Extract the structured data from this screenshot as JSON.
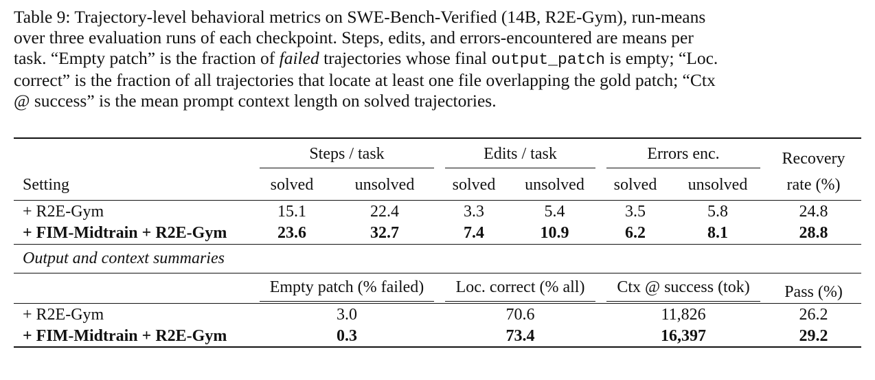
{
  "caption": [
    "Table 9: Trajectory-level behavioral metrics on SWE-Bench-Verified (14B, R2E-Gym), run-means",
    "over three evaluation runs of each checkpoint. Steps, edits, and errors-encountered are means per",
    "task. “Empty patch” is the fraction of ",
    "failed",
    " trajectories whose final ",
    "output_patch",
    " is empty; “Loc.",
    "correct” is the fraction of all trajectories that locate at least one file overlapping the gold patch; “Ctx",
    "@ success” is the mean prompt context length on solved trajectories."
  ],
  "table": {
    "groups": [
      "Steps / task",
      "Edits / task",
      "Errors enc.",
      "Recovery"
    ],
    "subheaders": [
      "Setting",
      "solved",
      "unsolved",
      "solved",
      "unsolved",
      "solved",
      "unsolved",
      "rate (%)"
    ],
    "rows": [
      {
        "setting": "+ R2E-Gym",
        "values": [
          "15.1",
          "22.4",
          "3.3",
          "5.4",
          "3.5",
          "5.8",
          "24.8"
        ]
      },
      {
        "setting": "+ FIM-Midtrain + R2E-Gym",
        "values": [
          "23.6",
          "32.7",
          "7.4",
          "10.9",
          "6.2",
          "8.1",
          "28.8"
        ]
      }
    ],
    "section": "Output and context summaries",
    "headers2": [
      "Empty patch (% failed)",
      "Loc. correct (% all)",
      "Ctx @ success (tok)",
      "Pass (%)"
    ],
    "rows2": [
      {
        "setting": "+ R2E-Gym",
        "values": [
          "3.0",
          "70.6",
          "11,826",
          "26.2"
        ]
      },
      {
        "setting": "+ FIM-Midtrain + R2E-Gym",
        "values": [
          "0.3",
          "73.4",
          "16,397",
          "29.2"
        ]
      }
    ]
  }
}
